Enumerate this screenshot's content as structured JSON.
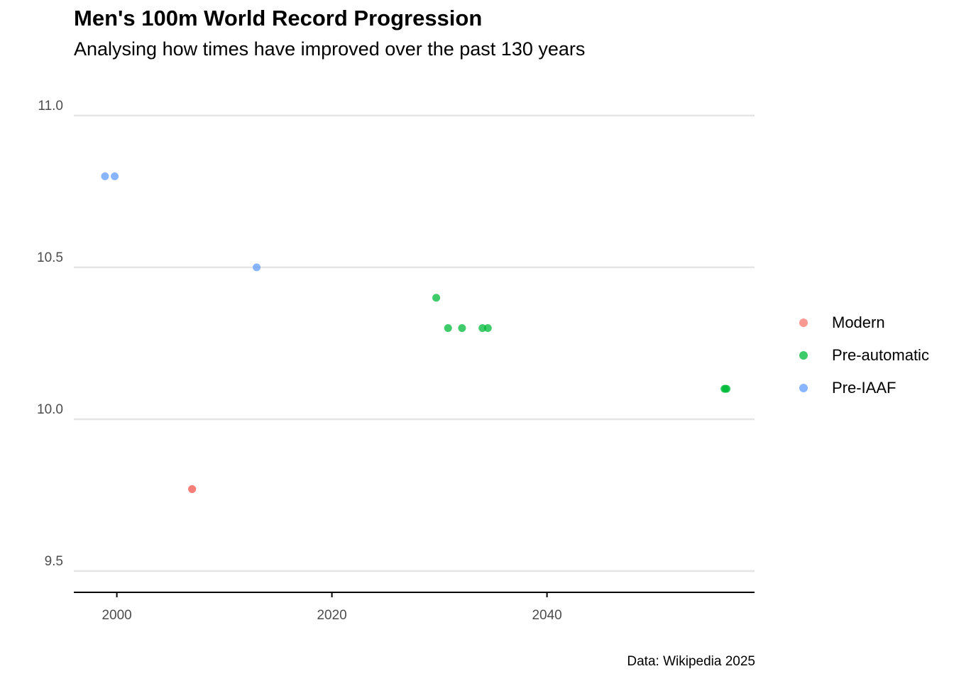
{
  "chart_data": {
    "type": "scatter",
    "title": "Men's 100m World Record Progression",
    "subtitle": "Analysing how times have improved over the past 130 years",
    "caption": "Data: Wikipedia 2025",
    "xlabel": "",
    "ylabel": "",
    "xlim": [
      1996,
      2059.3
    ],
    "ylim": [
      9.43,
      11.03
    ],
    "x_ticks": [
      2000,
      2020,
      2040
    ],
    "y_ticks": [
      9.5,
      10.0,
      10.5,
      11.0
    ],
    "y_tick_labels": [
      "9.5",
      "10.0",
      "10.5",
      "11.0"
    ],
    "grid": "horizontal major only",
    "legend_position": "right",
    "series": [
      {
        "name": "Modern",
        "color": "#F8766D",
        "points": [
          [
            2007,
            9.77
          ],
          [
            2007,
            9.77
          ]
        ]
      },
      {
        "name": "Pre-automatic",
        "color": "#00BA38",
        "points": [
          [
            2029.7,
            10.4
          ],
          [
            2030.8,
            10.3
          ],
          [
            2032.1,
            10.3
          ],
          [
            2034,
            10.3
          ],
          [
            2034.5,
            10.3
          ],
          [
            2056.5,
            10.1
          ],
          [
            2056.6,
            10.1
          ],
          [
            2056.7,
            10.1
          ]
        ]
      },
      {
        "name": "Pre-IAAF",
        "color": "#619CFF",
        "points": [
          [
            1998.9,
            10.8
          ],
          [
            1999.8,
            10.8
          ],
          [
            2013,
            10.5
          ]
        ]
      }
    ]
  }
}
